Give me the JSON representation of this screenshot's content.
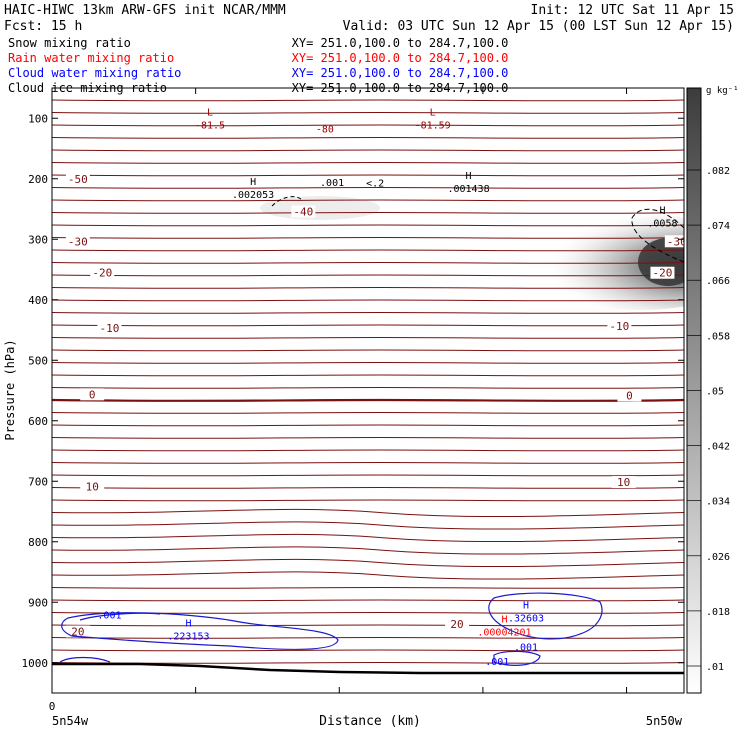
{
  "header": {
    "left_line1": "HAIC-HIWC 13km ARW-GFS init   NCAR/MMM",
    "right_line1": "Init: 12 UTC Sat 11 Apr 15",
    "left_line2": "Fcst:   15 h",
    "right_line2": "Valid: 03 UTC Sun 12 Apr 15 (00 LST Sun 12 Apr 15)"
  },
  "fields": [
    {
      "name": "Snow mixing ratio",
      "xy": "XY= 251.0,100.0 to 284.7,100.0",
      "color": "#000000"
    },
    {
      "name": "Rain water mixing ratio",
      "xy": "XY= 251.0,100.0 to 284.7,100.0",
      "color": "#ff0000"
    },
    {
      "name": "Cloud water mixing ratio",
      "xy": "XY= 251.0,100.0 to 284.7,100.0",
      "color": "#0000ff"
    },
    {
      "name": "Cloud ice mixing ratio",
      "xy": "XY= 251.0,100.0 to 284.7,100.0",
      "color": "#000000"
    }
  ],
  "axes": {
    "ylabel": "Pressure (hPa)",
    "xlabel": "Distance (km)",
    "x_zero": "0",
    "x_left_label": "5n54w",
    "x_right_label": "5n50w"
  },
  "colorbar": {
    "unit": "g kg⁻¹",
    "ticks": [
      ".01",
      ".018",
      ".026",
      ".034",
      ".042",
      ".05",
      ".058",
      ".066",
      ".074",
      ".082"
    ]
  },
  "chart_data": {
    "type": "contour",
    "x_range": [
      0,
      440
    ],
    "ylim": [
      1050,
      50
    ],
    "yticks": [
      100,
      200,
      300,
      400,
      500,
      600,
      700,
      800,
      900,
      1000
    ],
    "temperature_isotherms": [
      {
        "label": "-50",
        "x": 18,
        "p": 202
      },
      {
        "label": "-40",
        "x": 175,
        "p": 256
      },
      {
        "label": "-30",
        "x": 18,
        "p": 305
      },
      {
        "label": "-30",
        "x": 435,
        "p": 305
      },
      {
        "label": "-20",
        "x": 35,
        "p": 357
      },
      {
        "label": "-20",
        "x": 425,
        "p": 357
      },
      {
        "label": "-10",
        "x": 40,
        "p": 448
      },
      {
        "label": "-10",
        "x": 395,
        "p": 445
      },
      {
        "label": "0",
        "x": 28,
        "p": 558
      },
      {
        "label": "0",
        "x": 402,
        "p": 560
      },
      {
        "label": "10",
        "x": 28,
        "p": 710
      },
      {
        "label": "10",
        "x": 398,
        "p": 703
      },
      {
        "label": "20",
        "x": 18,
        "p": 950
      },
      {
        "label": "20",
        "x": 282,
        "p": 938
      }
    ],
    "extrema": [
      {
        "type": "L",
        "value": "-81.5",
        "x": 110,
        "p": 110,
        "color": "#990000"
      },
      {
        "type": "L",
        "value": "-81.59",
        "x": 265,
        "p": 110,
        "color": "#990000"
      },
      {
        "type": "isotherm",
        "value": "-80",
        "x": 190,
        "p": 117,
        "color": "#990000"
      },
      {
        "type": "H",
        "value": ".002053",
        "x": 140,
        "p": 225,
        "color": "#000000"
      },
      {
        "type": "H",
        "value": ".001438",
        "x": 290,
        "p": 215,
        "color": "#000000"
      },
      {
        "type": "H",
        "value": ".0058",
        "x": 425,
        "p": 272,
        "color": "#000000"
      },
      {
        "type": "H",
        "value": ".223153",
        "x": 95,
        "p": 955,
        "color": "#0000ff"
      },
      {
        "type": "H",
        "value": ".32603",
        "x": 330,
        "p": 925,
        "color": "#0000ff"
      },
      {
        "type": "H",
        "value": ".00004201",
        "x": 315,
        "p": 948,
        "color": "#ff0000"
      }
    ],
    "contour_labels": [
      {
        "value": ".001",
        "x": 195,
        "p": 205,
        "color": "#000000"
      },
      {
        "value": "<.2",
        "x": 225,
        "p": 206,
        "color": "#000000"
      },
      {
        "value": ".001",
        "x": 40,
        "p": 920,
        "color": "#0000ff"
      },
      {
        "value": ".001",
        "x": 330,
        "p": 973,
        "color": "#0000ff"
      },
      {
        "value": ".001",
        "x": 310,
        "p": 997,
        "color": "#0000ff"
      }
    ]
  }
}
